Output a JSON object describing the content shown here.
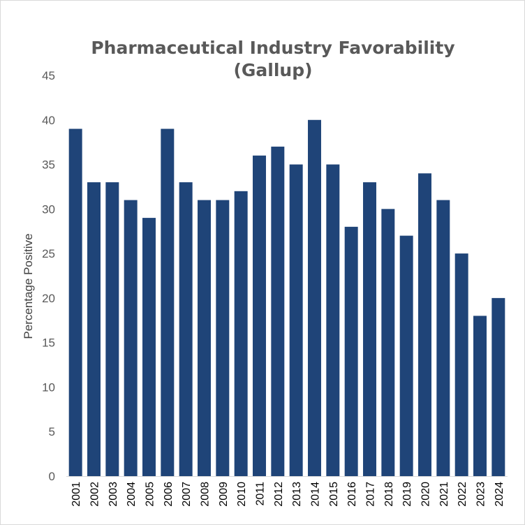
{
  "chart_data": {
    "type": "bar",
    "title_line1": "Pharmaceutical Industry Favorability",
    "title_line2": "(Gallup)",
    "xlabel": "",
    "ylabel": "Percentage Positive",
    "ylim": [
      0,
      45
    ],
    "ytick_step": 5,
    "grid": false,
    "bar_color": "#1f4478",
    "categories": [
      "2001",
      "2002",
      "2003",
      "2004",
      "2005",
      "2006",
      "2007",
      "2008",
      "2009",
      "2010",
      "2011",
      "2012",
      "2013",
      "2014",
      "2015",
      "2016",
      "2017",
      "2018",
      "2019",
      "2020",
      "2021",
      "2022",
      "2023",
      "2024"
    ],
    "values": [
      39,
      33,
      33,
      31,
      29,
      39,
      33,
      31,
      31,
      32,
      36,
      37,
      35,
      40,
      35,
      28,
      33,
      30,
      27,
      34,
      31,
      25,
      18,
      20
    ]
  }
}
